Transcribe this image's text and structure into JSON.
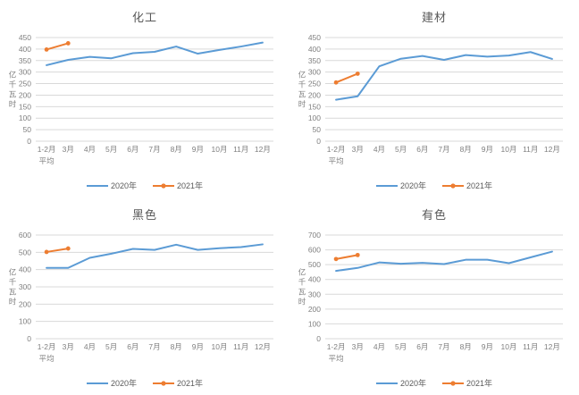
{
  "colors": {
    "series_2020": "#5B9BD5",
    "series_2021": "#ED7D31",
    "gridline": "#D9D9D9",
    "axis_text": "#808080",
    "title_text": "#595959",
    "legend_text": "#595959",
    "background": "#FFFFFF"
  },
  "chart_data": [
    {
      "type": "line",
      "title": "化工",
      "ylabel": "亿千瓦时",
      "ylim": [
        0,
        450
      ],
      "ytick_step": 50,
      "grid": true,
      "legend_position": "bottom",
      "categories": [
        "1-2月平均",
        "3月",
        "4月",
        "5月",
        "6月",
        "7月",
        "8月",
        "9月",
        "10月",
        "11月",
        "12月"
      ],
      "series": [
        {
          "name": "2020年",
          "color": "#5B9BD5",
          "marker": "none",
          "values": [
            330,
            353,
            366,
            360,
            382,
            388,
            411,
            380,
            396,
            411,
            428
          ]
        },
        {
          "name": "2021年",
          "color": "#ED7D31",
          "marker": "circle",
          "values": [
            398,
            425
          ]
        }
      ]
    },
    {
      "type": "line",
      "title": "建材",
      "ylabel": "亿千瓦时",
      "ylim": [
        0,
        450
      ],
      "ytick_step": 50,
      "grid": true,
      "legend_position": "bottom",
      "categories": [
        "1-2月平均",
        "3月",
        "4月",
        "5月",
        "6月",
        "7月",
        "8月",
        "9月",
        "10月",
        "11月",
        "12月"
      ],
      "series": [
        {
          "name": "2020年",
          "color": "#5B9BD5",
          "marker": "none",
          "values": [
            180,
            195,
            325,
            358,
            370,
            353,
            374,
            367,
            372,
            387,
            357
          ]
        },
        {
          "name": "2021年",
          "color": "#ED7D31",
          "marker": "circle",
          "values": [
            255,
            293
          ]
        }
      ]
    },
    {
      "type": "line",
      "title": "黑色",
      "ylabel": "亿千瓦时",
      "ylim": [
        0,
        600
      ],
      "ytick_step": 100,
      "grid": true,
      "legend_position": "bottom",
      "categories": [
        "1-2月平均",
        "3月",
        "4月",
        "5月",
        "6月",
        "7月",
        "8月",
        "9月",
        "10月",
        "11月",
        "12月"
      ],
      "series": [
        {
          "name": "2020年",
          "color": "#5B9BD5",
          "marker": "none",
          "values": [
            410,
            410,
            468,
            492,
            520,
            514,
            544,
            514,
            524,
            530,
            546
          ]
        },
        {
          "name": "2021年",
          "color": "#ED7D31",
          "marker": "circle",
          "values": [
            502,
            522
          ]
        }
      ]
    },
    {
      "type": "line",
      "title": "有色",
      "ylabel": "亿千瓦时",
      "ylim": [
        0,
        700
      ],
      "ytick_step": 100,
      "grid": true,
      "legend_position": "bottom",
      "categories": [
        "1-2月平均",
        "3月",
        "4月",
        "5月",
        "6月",
        "7月",
        "8月",
        "9月",
        "10月",
        "11月",
        "12月"
      ],
      "series": [
        {
          "name": "2020年",
          "color": "#5B9BD5",
          "marker": "none",
          "values": [
            458,
            478,
            515,
            506,
            512,
            504,
            533,
            533,
            510,
            549,
            588
          ]
        },
        {
          "name": "2021年",
          "color": "#ED7D31",
          "marker": "circle",
          "values": [
            538,
            565
          ]
        }
      ]
    }
  ]
}
